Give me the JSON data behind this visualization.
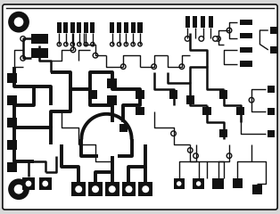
{
  "bg_color": "#d8d8d8",
  "board_fill": "#ffffff",
  "track_color": "#111111",
  "pad_color": "#111111",
  "board_outline_color": "#111111",
  "track_linewidth": 2.8,
  "med_track_linewidth": 1.8,
  "thin_track_linewidth": 1.0,
  "figsize": [
    3.14,
    2.4
  ],
  "dpi": 100
}
